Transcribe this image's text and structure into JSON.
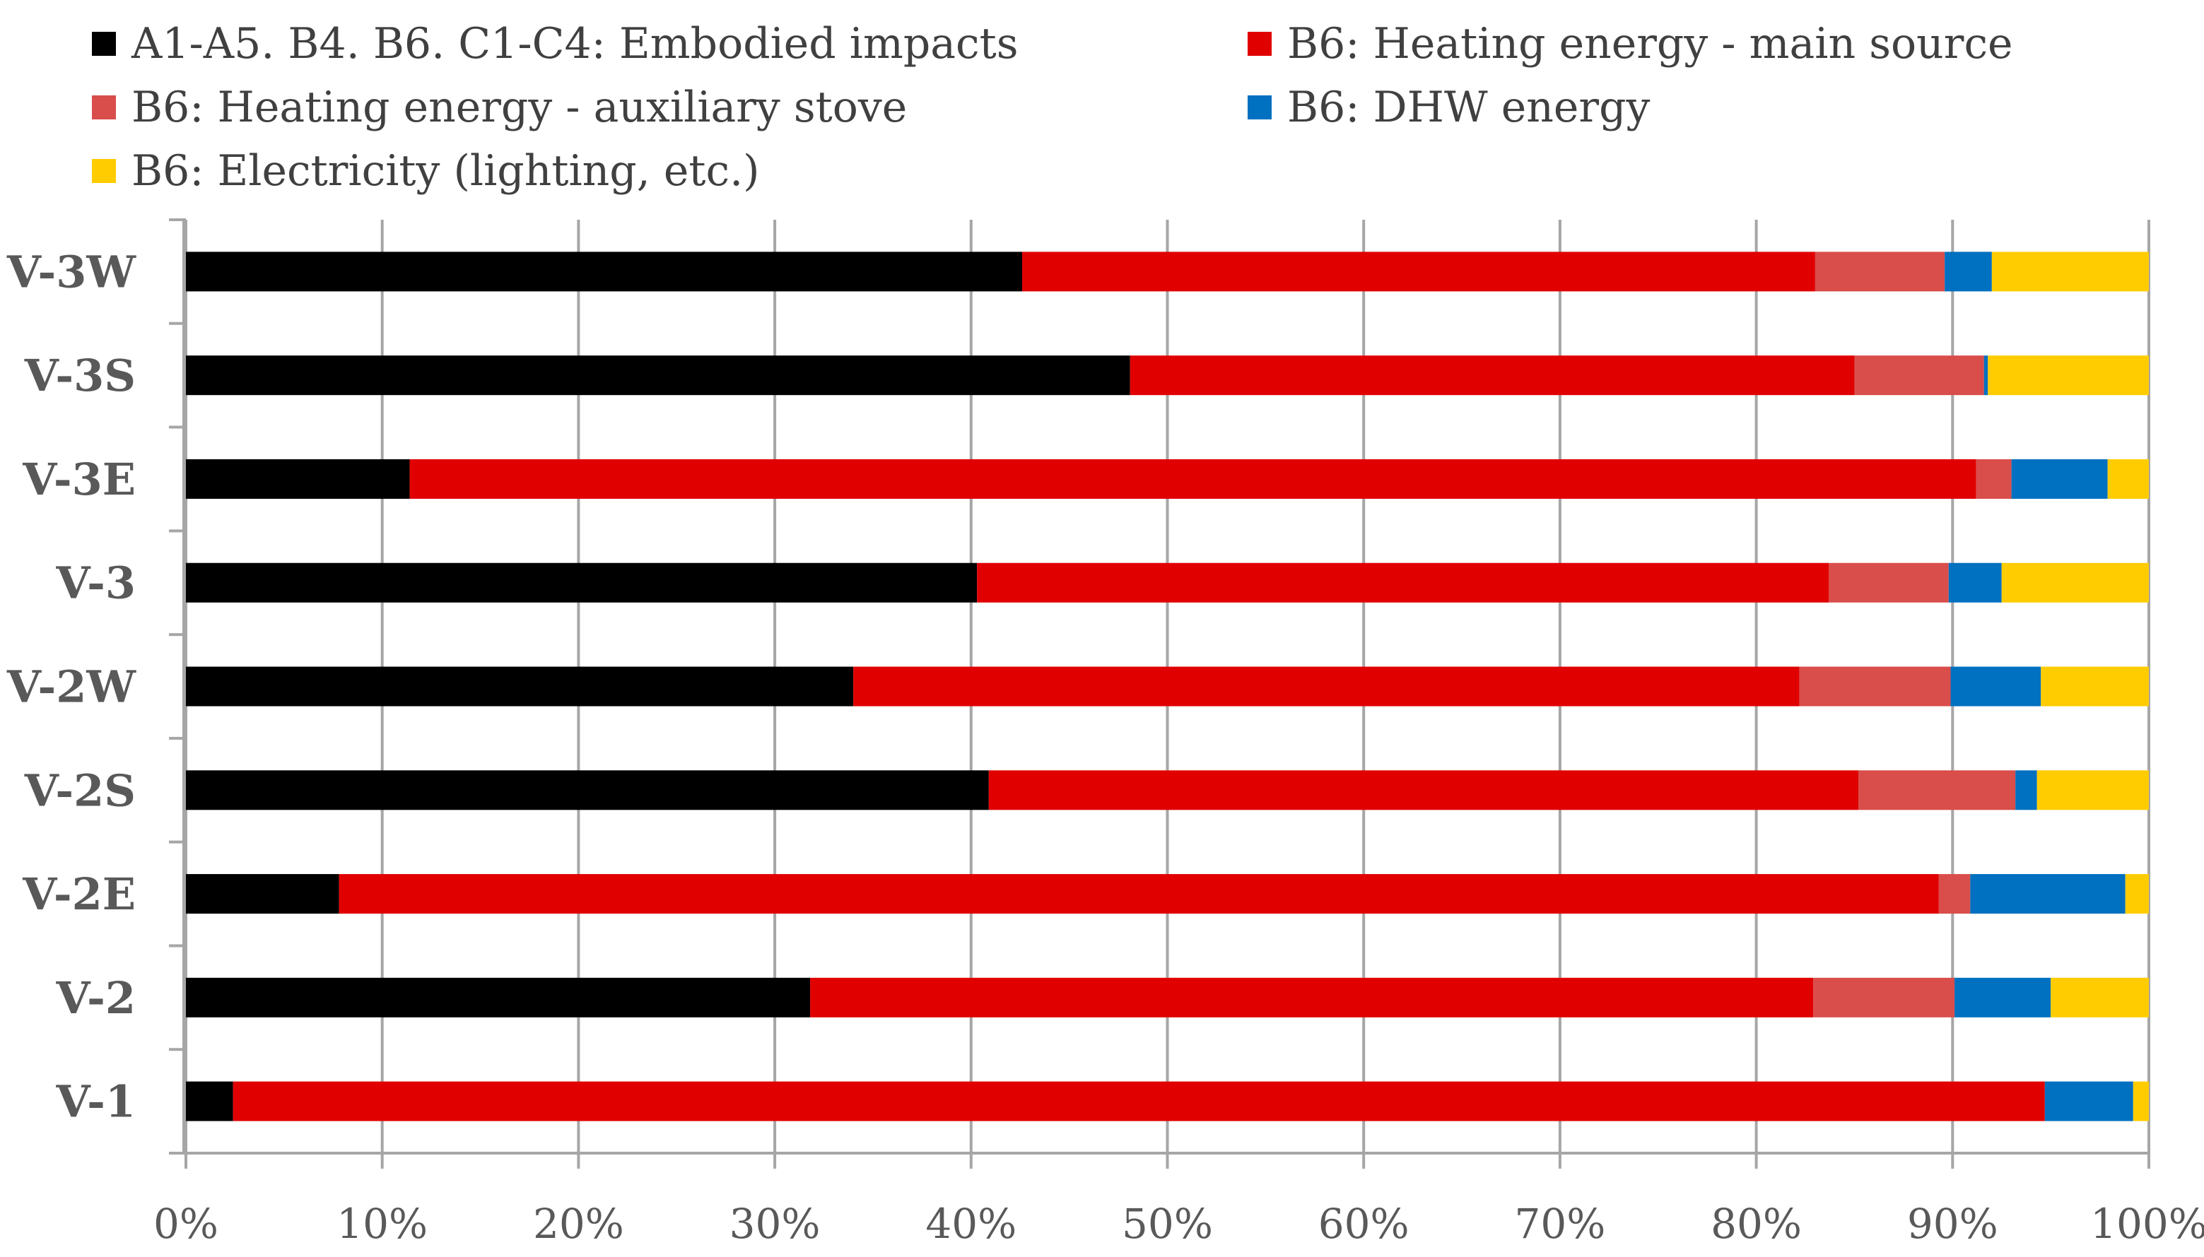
{
  "chart_data": {
    "type": "bar",
    "orientation": "horizontal",
    "stacked": true,
    "normalized_percent": true,
    "title": "",
    "xlabel": "",
    "ylabel": "",
    "xlim": [
      0,
      100
    ],
    "x_ticks": [
      "0%",
      "10%",
      "20%",
      "30%",
      "40%",
      "50%",
      "60%",
      "70%",
      "80%",
      "90%",
      "100%"
    ],
    "grid": "vertical",
    "legend_position": "top",
    "categories": [
      "V-3W",
      "V-3S",
      "V-3E",
      "V-3",
      "V-2W",
      "V-2S",
      "V-2E",
      "V-2",
      "V-1"
    ],
    "series": [
      {
        "name": "A1-A5. B4. B6. C1-C4: Embodied impacts",
        "color": "#000000",
        "values": [
          42.6,
          48.1,
          11.4,
          40.3,
          34.0,
          40.9,
          7.8,
          31.8,
          2.4
        ]
      },
      {
        "name": "B6: Heating energy - main source",
        "color": "#e00000",
        "values": [
          40.4,
          36.9,
          79.8,
          43.4,
          48.2,
          44.3,
          81.5,
          51.1,
          92.3
        ]
      },
      {
        "name": "B6: Heating energy - auxiliary stove",
        "color": "#d94d4a",
        "values": [
          6.6,
          6.6,
          1.8,
          6.1,
          7.7,
          8.0,
          1.6,
          7.2,
          0.0
        ]
      },
      {
        "name": "B6: DHW energy",
        "color": "#0070c0",
        "values": [
          2.4,
          0.2,
          4.9,
          2.7,
          4.6,
          1.1,
          7.9,
          4.9,
          4.5
        ]
      },
      {
        "name": "B6: Electricity (lighting, etc.)",
        "color": "#ffcc00",
        "values": [
          8.0,
          8.2,
          2.1,
          7.5,
          5.5,
          5.7,
          1.2,
          5.0,
          0.8
        ]
      }
    ]
  }
}
